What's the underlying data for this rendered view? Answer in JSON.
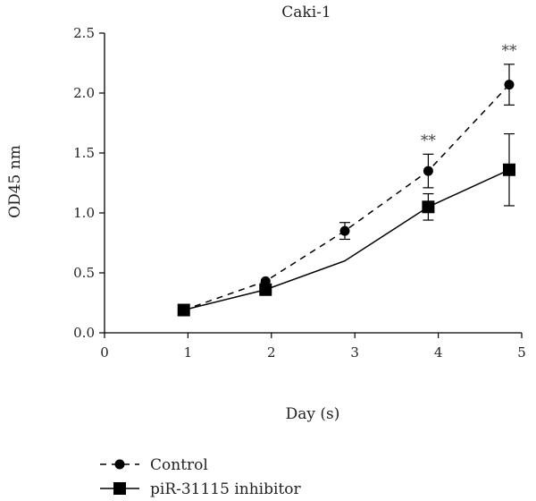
{
  "chart_data": {
    "type": "line",
    "title": "Caki-1",
    "xlabel": "Day (s)",
    "ylabel": "OD45 nm",
    "xlim": [
      0,
      5
    ],
    "ylim": [
      0,
      2.5
    ],
    "xticks": [
      "0",
      "1",
      "2",
      "3",
      "4",
      "5"
    ],
    "yticks": [
      "0.0",
      "0.5",
      "1.0",
      "1.5",
      "2.0",
      "2.5"
    ],
    "grid": false,
    "legend_position": "bottom-left",
    "series": [
      {
        "name": "Control",
        "style": "dashed",
        "marker": "circle",
        "color": "#000000",
        "x": [
          0.95,
          1.93,
          2.88,
          3.88,
          4.85
        ],
        "y": [
          0.19,
          0.43,
          0.85,
          1.35,
          2.07
        ],
        "err": [
          0.02,
          0.03,
          0.07,
          0.14,
          0.17
        ],
        "marker_shown": [
          false,
          true,
          true,
          true,
          true
        ]
      },
      {
        "name": "piR-31115 inhibitor",
        "style": "solid",
        "marker": "square",
        "color": "#000000",
        "x": [
          0.95,
          1.93,
          2.88,
          3.88,
          4.85
        ],
        "y": [
          0.19,
          0.36,
          0.6,
          1.05,
          1.36
        ],
        "err": [
          0.02,
          0.03,
          0.0,
          0.11,
          0.3
        ],
        "marker_shown": [
          true,
          true,
          false,
          true,
          true
        ]
      }
    ],
    "annotations": [
      {
        "text": "**",
        "x": 3.88
      },
      {
        "text": "**",
        "x": 4.85
      }
    ]
  }
}
